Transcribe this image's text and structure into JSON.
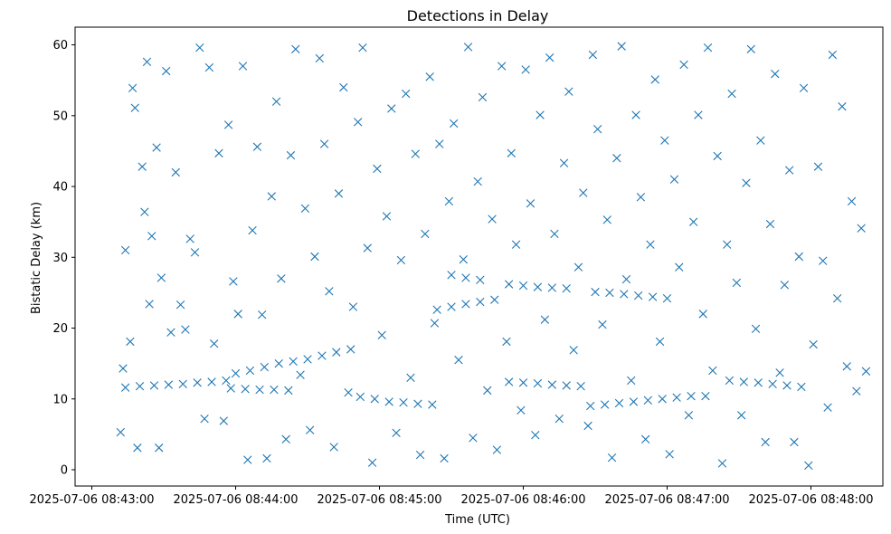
{
  "chart_data": {
    "type": "scatter",
    "title": "Detections in Delay",
    "xlabel": "Time (UTC)",
    "ylabel": "Bistatic Delay (km)",
    "x_ticks": [
      "2025-07-06 08:43:00",
      "2025-07-06 08:44:00",
      "2025-07-06 08:45:00",
      "2025-07-06 08:46:00",
      "2025-07-06 08:47:00",
      "2025-07-06 08:48:00"
    ],
    "y_ticks": [
      "0",
      "10",
      "20",
      "30",
      "40",
      "50",
      "60"
    ],
    "xlim": [
      "2025-07-06 08:42:53",
      "2025-07-06 08:48:30"
    ],
    "ylim": [
      -2.3,
      62.5
    ],
    "grid": false,
    "marker": "x",
    "color": "#1f77b4",
    "series": [
      {
        "points": [
          [
            "08:43:14",
            11.6
          ],
          [
            "08:43:20",
            11.8
          ],
          [
            "08:43:26",
            11.9
          ],
          [
            "08:43:32",
            12.0
          ],
          [
            "08:43:38",
            12.1
          ],
          [
            "08:43:44",
            12.3
          ],
          [
            "08:43:50",
            12.4
          ],
          [
            "08:43:56",
            12.6
          ],
          [
            "08:43:58",
            11.5
          ],
          [
            "08:44:04",
            11.4
          ],
          [
            "08:44:10",
            11.3
          ],
          [
            "08:44:16",
            11.3
          ],
          [
            "08:44:22",
            11.2
          ],
          [
            "08:44:00",
            13.6
          ],
          [
            "08:44:06",
            14.0
          ],
          [
            "08:44:12",
            14.5
          ],
          [
            "08:44:18",
            15.0
          ],
          [
            "08:44:24",
            15.3
          ],
          [
            "08:44:30",
            15.6
          ],
          [
            "08:44:36",
            16.1
          ],
          [
            "08:44:42",
            16.6
          ],
          [
            "08:44:48",
            17.0
          ],
          [
            "08:44:52",
            10.3
          ],
          [
            "08:44:58",
            10.0
          ],
          [
            "08:45:04",
            9.6
          ],
          [
            "08:45:10",
            9.5
          ],
          [
            "08:45:16",
            9.3
          ],
          [
            "08:45:22",
            9.2
          ],
          [
            "08:45:24",
            22.6
          ],
          [
            "08:45:30",
            23.0
          ],
          [
            "08:45:36",
            23.4
          ],
          [
            "08:45:42",
            23.7
          ],
          [
            "08:45:48",
            24.0
          ],
          [
            "08:45:30",
            27.5
          ],
          [
            "08:45:36",
            27.1
          ],
          [
            "08:45:42",
            26.8
          ],
          [
            "08:45:54",
            26.2
          ],
          [
            "08:46:00",
            26.0
          ],
          [
            "08:46:06",
            25.8
          ],
          [
            "08:46:12",
            25.7
          ],
          [
            "08:46:18",
            25.6
          ],
          [
            "08:45:54",
            12.4
          ],
          [
            "08:46:00",
            12.3
          ],
          [
            "08:46:06",
            12.2
          ],
          [
            "08:46:12",
            12.0
          ],
          [
            "08:46:18",
            11.9
          ],
          [
            "08:46:24",
            11.8
          ],
          [
            "08:46:28",
            9.0
          ],
          [
            "08:46:34",
            9.2
          ],
          [
            "08:46:40",
            9.4
          ],
          [
            "08:46:46",
            9.6
          ],
          [
            "08:46:52",
            9.8
          ],
          [
            "08:46:58",
            10.0
          ],
          [
            "08:47:04",
            10.2
          ],
          [
            "08:47:10",
            10.4
          ],
          [
            "08:47:16",
            10.4
          ],
          [
            "08:46:30",
            25.1
          ],
          [
            "08:46:36",
            25.0
          ],
          [
            "08:46:42",
            24.8
          ],
          [
            "08:46:48",
            24.6
          ],
          [
            "08:46:54",
            24.4
          ],
          [
            "08:47:00",
            24.2
          ],
          [
            "08:47:26",
            12.6
          ],
          [
            "08:47:32",
            12.4
          ],
          [
            "08:47:38",
            12.3
          ],
          [
            "08:47:44",
            12.1
          ],
          [
            "08:47:50",
            11.9
          ],
          [
            "08:47:56",
            11.7
          ],
          [
            "08:43:12",
            5.3
          ],
          [
            "08:43:13",
            14.3
          ],
          [
            "08:43:14",
            31.0
          ],
          [
            "08:43:16",
            18.1
          ],
          [
            "08:43:17",
            53.9
          ],
          [
            "08:43:18",
            51.1
          ],
          [
            "08:43:19",
            3.1
          ],
          [
            "08:43:21",
            42.8
          ],
          [
            "08:43:22",
            36.4
          ],
          [
            "08:43:23",
            57.6
          ],
          [
            "08:43:24",
            23.4
          ],
          [
            "08:43:25",
            33.0
          ],
          [
            "08:43:27",
            45.5
          ],
          [
            "08:43:28",
            3.1
          ],
          [
            "08:43:29",
            27.1
          ],
          [
            "08:43:31",
            56.3
          ],
          [
            "08:43:33",
            19.4
          ],
          [
            "08:43:35",
            42.0
          ],
          [
            "08:43:37",
            23.3
          ],
          [
            "08:43:39",
            19.8
          ],
          [
            "08:43:41",
            32.6
          ],
          [
            "08:43:43",
            30.7
          ],
          [
            "08:43:45",
            59.6
          ],
          [
            "08:43:47",
            7.2
          ],
          [
            "08:43:49",
            56.8
          ],
          [
            "08:43:51",
            17.8
          ],
          [
            "08:43:53",
            44.7
          ],
          [
            "08:43:55",
            6.9
          ],
          [
            "08:43:57",
            48.7
          ],
          [
            "08:43:59",
            26.6
          ],
          [
            "08:44:01",
            22.0
          ],
          [
            "08:44:03",
            57.0
          ],
          [
            "08:44:05",
            1.4
          ],
          [
            "08:44:07",
            33.8
          ],
          [
            "08:44:09",
            45.6
          ],
          [
            "08:44:11",
            21.9
          ],
          [
            "08:44:13",
            1.6
          ],
          [
            "08:44:15",
            38.6
          ],
          [
            "08:44:17",
            52.0
          ],
          [
            "08:44:19",
            27.0
          ],
          [
            "08:44:21",
            4.3
          ],
          [
            "08:44:23",
            44.4
          ],
          [
            "08:44:25",
            59.4
          ],
          [
            "08:44:27",
            13.4
          ],
          [
            "08:44:29",
            36.9
          ],
          [
            "08:44:31",
            5.6
          ],
          [
            "08:44:33",
            30.1
          ],
          [
            "08:44:35",
            58.1
          ],
          [
            "08:44:37",
            46.0
          ],
          [
            "08:44:39",
            25.2
          ],
          [
            "08:44:41",
            3.2
          ],
          [
            "08:44:43",
            39.0
          ],
          [
            "08:44:45",
            54.0
          ],
          [
            "08:44:47",
            10.9
          ],
          [
            "08:44:49",
            23.0
          ],
          [
            "08:44:51",
            49.1
          ],
          [
            "08:44:53",
            59.6
          ],
          [
            "08:44:55",
            31.3
          ],
          [
            "08:44:57",
            1.0
          ],
          [
            "08:44:59",
            42.5
          ],
          [
            "08:45:01",
            19.0
          ],
          [
            "08:45:03",
            35.8
          ],
          [
            "08:45:05",
            51.0
          ],
          [
            "08:45:07",
            5.2
          ],
          [
            "08:45:09",
            29.6
          ],
          [
            "08:45:11",
            53.1
          ],
          [
            "08:45:13",
            13.0
          ],
          [
            "08:45:15",
            44.6
          ],
          [
            "08:45:17",
            2.1
          ],
          [
            "08:45:19",
            33.3
          ],
          [
            "08:45:21",
            55.5
          ],
          [
            "08:45:23",
            20.7
          ],
          [
            "08:45:25",
            46.0
          ],
          [
            "08:45:27",
            1.6
          ],
          [
            "08:45:29",
            37.9
          ],
          [
            "08:45:31",
            48.9
          ],
          [
            "08:45:33",
            15.5
          ],
          [
            "08:45:35",
            29.7
          ],
          [
            "08:45:37",
            59.7
          ],
          [
            "08:45:39",
            4.5
          ],
          [
            "08:45:41",
            40.7
          ],
          [
            "08:45:43",
            52.6
          ],
          [
            "08:45:45",
            11.2
          ],
          [
            "08:45:47",
            35.4
          ],
          [
            "08:45:49",
            2.8
          ],
          [
            "08:45:51",
            57.0
          ],
          [
            "08:45:53",
            18.1
          ],
          [
            "08:45:55",
            44.7
          ],
          [
            "08:45:57",
            31.8
          ],
          [
            "08:45:59",
            8.4
          ],
          [
            "08:46:01",
            56.5
          ],
          [
            "08:46:03",
            37.6
          ],
          [
            "08:46:05",
            4.9
          ],
          [
            "08:46:07",
            50.1
          ],
          [
            "08:46:09",
            21.2
          ],
          [
            "08:46:11",
            58.2
          ],
          [
            "08:46:13",
            33.3
          ],
          [
            "08:46:15",
            7.2
          ],
          [
            "08:46:17",
            43.3
          ],
          [
            "08:46:19",
            53.4
          ],
          [
            "08:46:21",
            16.9
          ],
          [
            "08:46:23",
            28.6
          ],
          [
            "08:46:25",
            39.1
          ],
          [
            "08:46:27",
            6.2
          ],
          [
            "08:46:29",
            58.6
          ],
          [
            "08:46:31",
            48.1
          ],
          [
            "08:46:33",
            20.5
          ],
          [
            "08:46:35",
            35.3
          ],
          [
            "08:46:37",
            1.7
          ],
          [
            "08:46:39",
            44.0
          ],
          [
            "08:46:41",
            59.8
          ],
          [
            "08:46:43",
            26.9
          ],
          [
            "08:46:45",
            12.6
          ],
          [
            "08:46:47",
            50.1
          ],
          [
            "08:46:49",
            38.5
          ],
          [
            "08:46:51",
            4.3
          ],
          [
            "08:46:53",
            31.8
          ],
          [
            "08:46:55",
            55.1
          ],
          [
            "08:46:57",
            18.1
          ],
          [
            "08:46:59",
            46.5
          ],
          [
            "08:47:01",
            2.2
          ],
          [
            "08:47:03",
            41.0
          ],
          [
            "08:47:05",
            28.6
          ],
          [
            "08:47:07",
            57.2
          ],
          [
            "08:47:09",
            7.7
          ],
          [
            "08:47:11",
            35.0
          ],
          [
            "08:47:13",
            50.1
          ],
          [
            "08:47:15",
            22.0
          ],
          [
            "08:47:17",
            59.6
          ],
          [
            "08:47:19",
            14.0
          ],
          [
            "08:47:21",
            44.3
          ],
          [
            "08:47:23",
            0.9
          ],
          [
            "08:47:25",
            31.8
          ],
          [
            "08:47:27",
            53.1
          ],
          [
            "08:47:29",
            26.4
          ],
          [
            "08:47:31",
            7.7
          ],
          [
            "08:47:33",
            40.5
          ],
          [
            "08:47:35",
            59.4
          ],
          [
            "08:47:37",
            19.9
          ],
          [
            "08:47:39",
            46.5
          ],
          [
            "08:47:41",
            3.9
          ],
          [
            "08:47:43",
            34.7
          ],
          [
            "08:47:45",
            55.9
          ],
          [
            "08:47:47",
            13.7
          ],
          [
            "08:47:49",
            26.1
          ],
          [
            "08:47:51",
            42.3
          ],
          [
            "08:47:53",
            3.9
          ],
          [
            "08:47:55",
            30.1
          ],
          [
            "08:47:57",
            53.9
          ],
          [
            "08:47:59",
            0.6
          ],
          [
            "08:48:01",
            17.7
          ],
          [
            "08:48:03",
            42.8
          ],
          [
            "08:48:05",
            29.5
          ],
          [
            "08:48:07",
            8.8
          ],
          [
            "08:48:09",
            58.6
          ],
          [
            "08:48:11",
            24.2
          ],
          [
            "08:48:13",
            51.3
          ],
          [
            "08:48:15",
            14.6
          ],
          [
            "08:48:17",
            37.9
          ],
          [
            "08:48:19",
            11.1
          ],
          [
            "08:48:21",
            34.1
          ],
          [
            "08:48:23",
            13.9
          ]
        ]
      }
    ]
  }
}
